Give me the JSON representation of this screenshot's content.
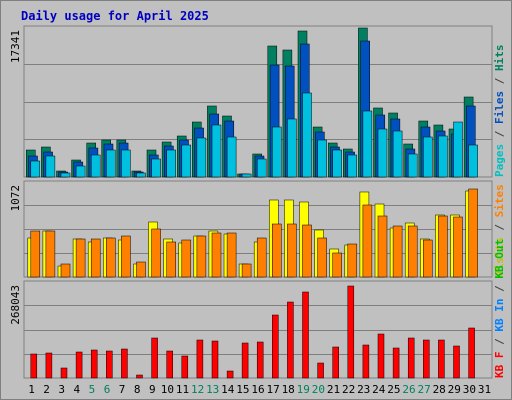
{
  "chart_data": {
    "type": "bar",
    "title": "Daily usage for April 2025",
    "categories": [
      "1",
      "2",
      "3",
      "4",
      "5",
      "6",
      "7",
      "8",
      "9",
      "10",
      "11",
      "12",
      "13",
      "14",
      "15",
      "16",
      "17",
      "18",
      "19",
      "20",
      "21",
      "22",
      "23",
      "24",
      "25",
      "26",
      "27",
      "28",
      "29",
      "30",
      "31"
    ],
    "weekend_days": [
      "5",
      "6",
      "12",
      "13",
      "19",
      "20",
      "26",
      "27"
    ],
    "panels": [
      {
        "id": "top",
        "max_label": "17341",
        "ylim": [
          0,
          17341
        ],
        "right_labels": [
          {
            "text": "Pages",
            "color": "#00c0c0"
          },
          {
            "text": " / ",
            "color": "#404040"
          },
          {
            "text": "Files",
            "color": "#0050c0"
          },
          {
            "text": " / ",
            "color": "#404040"
          },
          {
            "text": "Hits",
            "color": "#008060"
          }
        ],
        "series": [
          {
            "name": "Hits",
            "color": "#008060",
            "values": [
              3200,
              3500,
              700,
              2000,
              4000,
              4300,
              4300,
              700,
              3200,
              4100,
              4800,
              6400,
              8300,
              7100,
              400,
              2700,
              15200,
              14800,
              17000,
              5800,
              3900,
              3300,
              17300,
              8000,
              7500,
              3800,
              6500,
              6000,
              5600,
              9300,
              0
            ]
          },
          {
            "name": "Files",
            "color": "#0050c0",
            "values": [
              2500,
              2900,
              600,
              1800,
              3400,
              3800,
              3900,
              600,
              2600,
              3600,
              4300,
              5700,
              7300,
              6500,
              350,
              2400,
              13000,
              12900,
              15500,
              5200,
              3500,
              2900,
              15800,
              7200,
              6700,
              3300,
              5800,
              5400,
              5000,
              8300,
              0
            ]
          },
          {
            "name": "Pages",
            "color": "#00c0e0",
            "values": [
              1900,
              2500,
              500,
              1300,
              2600,
              3200,
              3100,
              500,
              2100,
              3100,
              3700,
              4500,
              6100,
              4600,
              300,
              2100,
              5800,
              6700,
              9800,
              4300,
              3200,
              2600,
              7700,
              5600,
              5400,
              2700,
              4700,
              4800,
              6400,
              3700,
              0
            ]
          }
        ]
      },
      {
        "id": "middle",
        "max_label": "1072",
        "ylim": [
          0,
          1072
        ],
        "right_labels": [
          {
            "text": "Visits",
            "color": "#c0c000"
          },
          {
            "text": " / ",
            "color": "#404040"
          },
          {
            "text": "Sites",
            "color": "#ff8000"
          }
        ],
        "series": [
          {
            "name": "Visits",
            "color": "#ffff00",
            "values": [
              450,
              520,
              120,
              430,
              400,
              440,
              420,
              150,
              630,
              430,
              390,
              470,
              520,
              490,
              150,
              400,
              880,
              880,
              860,
              540,
              320,
              370,
              970,
              830,
              560,
              620,
              430,
              710,
              710,
              980,
              0
            ]
          },
          {
            "name": "Sites",
            "color": "#ff8000",
            "values": [
              530,
              530,
              150,
              430,
              430,
              450,
              470,
              170,
              550,
              400,
              420,
              470,
              500,
              500,
              150,
              440,
              600,
              610,
              590,
              450,
              270,
              380,
              820,
              690,
              580,
              580,
              420,
              700,
              680,
              1000,
              0
            ]
          }
        ]
      },
      {
        "id": "bottom",
        "max_label": "268043",
        "ylim": [
          0,
          268043
        ],
        "right_labels": [
          {
            "text": "KB F",
            "color": "#ff0000"
          },
          {
            "text": " / ",
            "color": "#404040"
          },
          {
            "text": "KB In",
            "color": "#0080ff"
          },
          {
            "text": " / ",
            "color": "#404040"
          },
          {
            "text": "KB Out",
            "color": "#00c000"
          }
        ],
        "series": [
          {
            "name": "KB F",
            "color": "#ff0000",
            "values": [
              67000,
              70000,
              27000,
              72000,
              80000,
              77000,
              82000,
              8000,
              112000,
              77000,
              62000,
              106000,
              105000,
              19000,
              98000,
              102000,
              177000,
              214000,
              242000,
              43000,
              88000,
              260000,
              93000,
              123000,
              86000,
              112000,
              108000,
              108000,
              91000,
              142000,
              0
            ]
          }
        ]
      }
    ]
  }
}
